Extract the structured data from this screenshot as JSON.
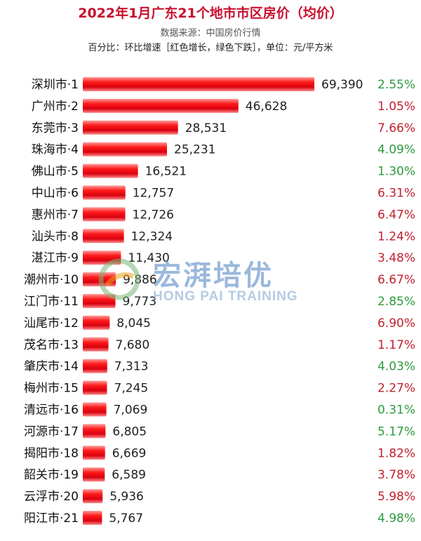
{
  "header": {
    "title": "2022年1月广东21个地市市区房价（均价）",
    "source": "数据来源：中国房价行情",
    "note": "百分比：环比增速［红色增长，绿色下跌］，单位：元/平方米"
  },
  "watermark": {
    "cn": "宏湃培优",
    "en": "HONG PAI TRAINING"
  },
  "colors": {
    "bar": "#e8101a",
    "up": "#c0202e",
    "down": "#2e9a3e"
  },
  "chart_data": {
    "type": "bar",
    "orientation": "horizontal",
    "title": "2022年1月广东21个地市市区房价（均价）",
    "categories": [
      "深圳市·1",
      "广州市·2",
      "东莞市·3",
      "珠海市·4",
      "佛山市·5",
      "中山市·6",
      "惠州市·7",
      "汕头市·8",
      "湛江市·9",
      "潮州市·10",
      "江门市·11",
      "汕尾市·12",
      "茂名市·13",
      "肇庆市·14",
      "梅州市·15",
      "清远市·16",
      "河源市·17",
      "揭阳市·18",
      "韶关市·19",
      "云浮市·20",
      "阳江市·21"
    ],
    "values": [
      69390,
      46628,
      28531,
      25231,
      16521,
      12757,
      12726,
      12324,
      11430,
      9886,
      9773,
      8045,
      7680,
      7313,
      7245,
      7069,
      6805,
      6669,
      6589,
      5936,
      5767
    ],
    "value_labels": [
      "69,390",
      "46,628",
      "28,531",
      "25,231",
      "16,521",
      "12,757",
      "12,726",
      "12,324",
      "11,430",
      "9,886",
      "9,773",
      "8,045",
      "7,680",
      "7,313",
      "7,245",
      "7,069",
      "6,805",
      "6,669",
      "6,589",
      "5,936",
      "5,767"
    ],
    "mom_change": [
      "2.55%",
      "1.05%",
      "7.66%",
      "4.09%",
      "1.30%",
      "6.31%",
      "6.47%",
      "1.24%",
      "3.48%",
      "6.67%",
      "2.85%",
      "6.90%",
      "1.17%",
      "4.03%",
      "2.27%",
      "0.31%",
      "5.17%",
      "1.82%",
      "3.78%",
      "5.98%",
      "4.98%"
    ],
    "mom_direction": [
      "down",
      "up",
      "up",
      "down",
      "down",
      "up",
      "up",
      "up",
      "up",
      "up",
      "down",
      "up",
      "up",
      "down",
      "up",
      "down",
      "down",
      "up",
      "up",
      "up",
      "down"
    ],
    "unit": "元/平方米",
    "grid": false,
    "legend": "none"
  }
}
